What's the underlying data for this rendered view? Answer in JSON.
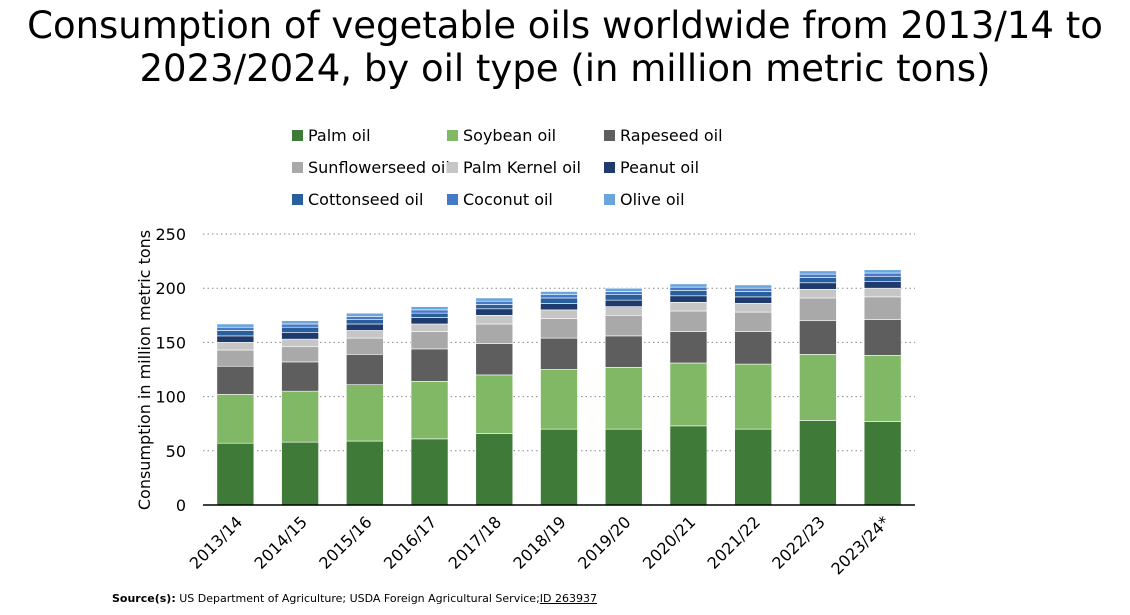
{
  "title_line1": "Consumption of vegetable oils worldwide from 2013/14 to",
  "title_line2": "2023/2024, by oil type (in million metric tons)",
  "source": {
    "prefix": "Source(s):",
    "text": " US Department of Agriculture; USDA Foreign Agricultural Service;",
    "id": "ID 263937"
  },
  "chart_data": {
    "type": "bar",
    "stacked": true,
    "ylabel": "Consumption in million metric tons",
    "ylim": [
      0,
      250
    ],
    "yticks": [
      0,
      50,
      100,
      150,
      200,
      250
    ],
    "grid": true,
    "legend_placement": "top",
    "categories": [
      "2013/14",
      "2014/15",
      "2015/16",
      "2016/17",
      "2017/18",
      "2018/19",
      "2019/20",
      "2020/21",
      "2021/22",
      "2022/23",
      "2023/24*"
    ],
    "series": [
      {
        "name": "Palm oil",
        "color": "#3f7a39",
        "values": [
          57,
          58,
          59,
          61,
          66,
          70,
          70,
          73,
          70,
          78,
          77
        ]
      },
      {
        "name": "Soybean oil",
        "color": "#80b865",
        "values": [
          45,
          47,
          52,
          53,
          54,
          55,
          57,
          58,
          60,
          61,
          61
        ]
      },
      {
        "name": "Rapeseed oil",
        "color": "#5e5e5e",
        "values": [
          26,
          27,
          28,
          30,
          29,
          29,
          29,
          29,
          30,
          31,
          33
        ]
      },
      {
        "name": "Sunflowerseed oil",
        "color": "#a9a9a9",
        "values": [
          15,
          14,
          15,
          16,
          18,
          18,
          19,
          19,
          18,
          21,
          21
        ]
      },
      {
        "name": "Palm Kernel oil",
        "color": "#c6c6c6",
        "values": [
          7,
          7,
          7,
          7,
          8,
          8,
          8,
          8,
          8,
          8,
          8
        ]
      },
      {
        "name": "Peanut oil",
        "color": "#1f3b6e",
        "values": [
          6,
          6,
          6,
          6,
          6,
          6,
          6,
          6,
          6,
          6,
          6
        ]
      },
      {
        "name": "Cottonseed oil",
        "color": "#2a5f9e",
        "values": [
          5,
          5,
          4,
          4,
          4,
          5,
          5,
          5,
          5,
          5,
          5
        ]
      },
      {
        "name": "Coconut oil",
        "color": "#4679c8",
        "values": [
          3,
          3,
          3,
          3,
          3,
          3,
          3,
          3,
          3,
          3,
          3
        ]
      },
      {
        "name": "Olive oil",
        "color": "#6aa6dc",
        "values": [
          3,
          3,
          3,
          3,
          3,
          3,
          3,
          3,
          3,
          3,
          3
        ]
      }
    ]
  }
}
